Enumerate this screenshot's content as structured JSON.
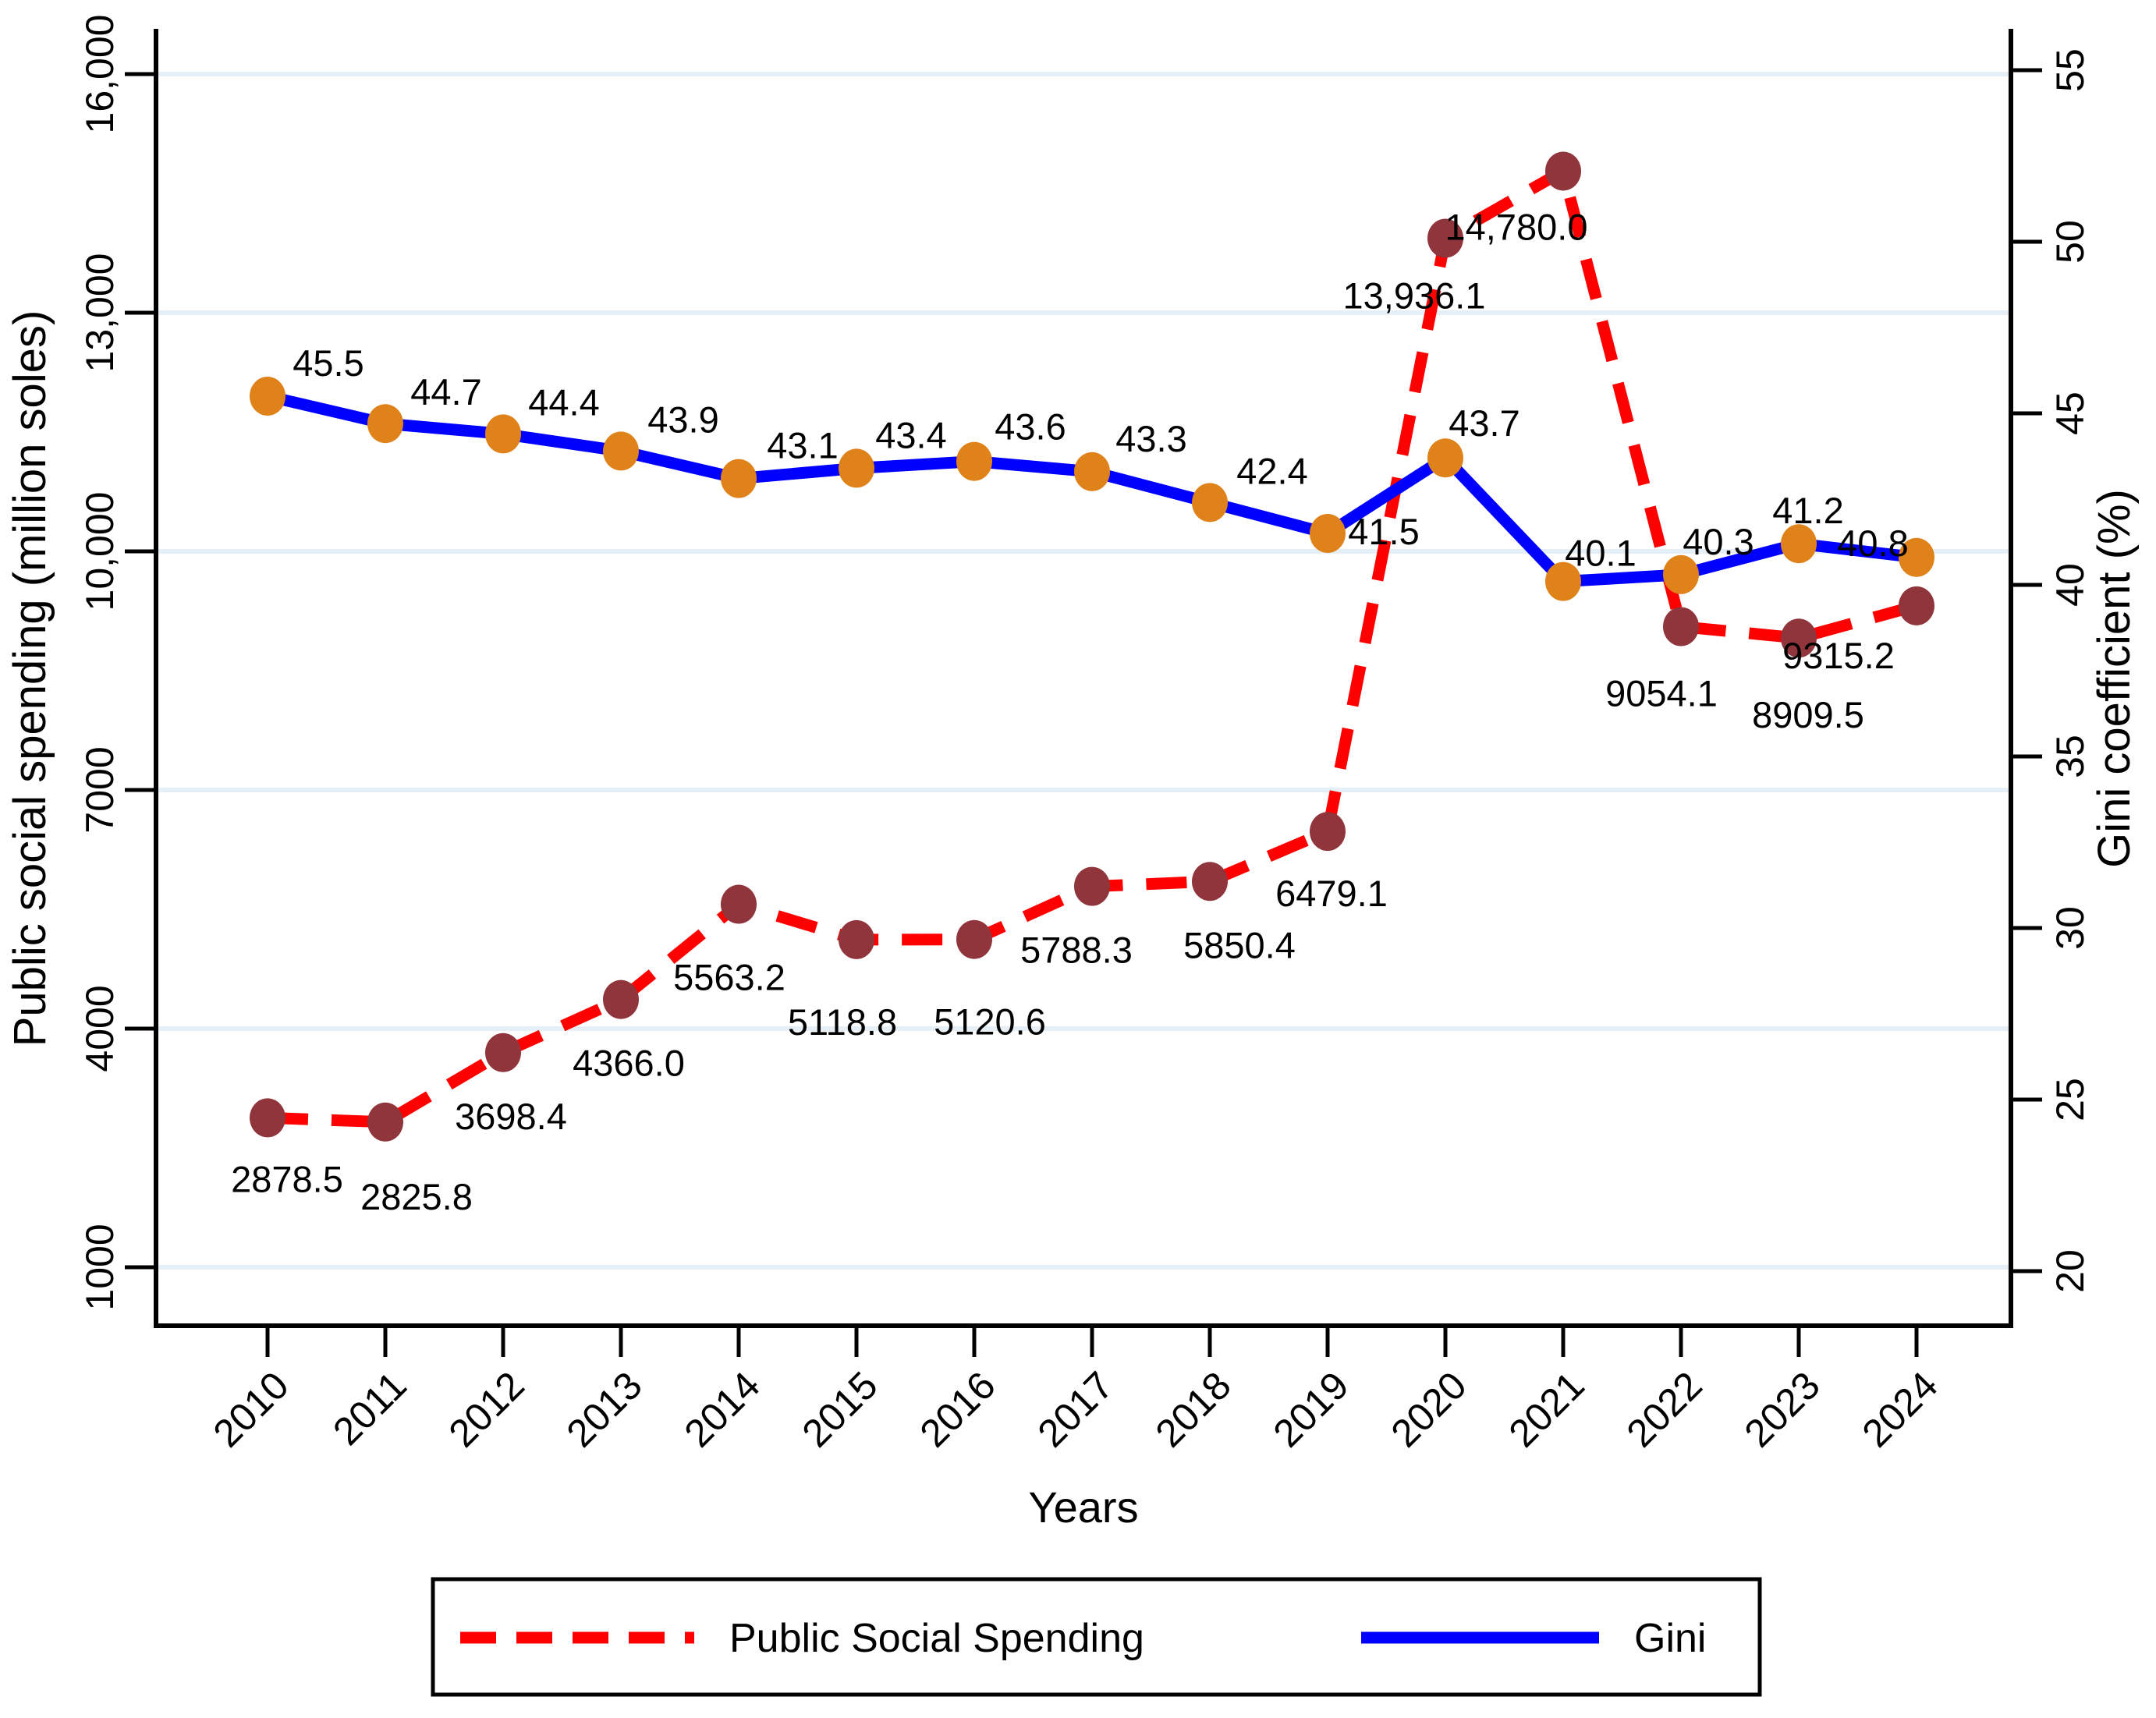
{
  "chart_data": {
    "type": "line",
    "title": "",
    "xlabel": "Years",
    "ylabel_left": "Public social spending (million soles)",
    "ylabel_right": "Gini coefficient (%)",
    "x": [
      "2010",
      "2011",
      "2012",
      "2013",
      "2014",
      "2015",
      "2016",
      "2017",
      "2018",
      "2019",
      "2020",
      "2021",
      "2022",
      "2023",
      "2024"
    ],
    "left_axis": {
      "range": [
        1000,
        16000
      ],
      "ticks": [
        1000,
        4000,
        7000,
        10000,
        13000,
        16000
      ],
      "tick_labels": [
        "1000",
        "4000",
        "7000",
        "10,000",
        "13,000",
        "16,000"
      ],
      "grid": true
    },
    "right_axis": {
      "range": [
        20,
        55
      ],
      "ticks": [
        20,
        25,
        30,
        35,
        40,
        45,
        50,
        55
      ],
      "tick_labels": [
        "20",
        "25",
        "30",
        "35",
        "40",
        "45",
        "50",
        "55"
      ],
      "grid": false
    },
    "series": [
      {
        "name": "Public Social Spending",
        "axis": "left",
        "line_style": "dashed",
        "line_color": "#ff0000",
        "marker_color": "#90353b",
        "label_color": "#ff0000",
        "values": [
          2878.5,
          2825.8,
          3698.4,
          4366.0,
          5563.2,
          5118.8,
          5120.6,
          5788.3,
          5850.4,
          6479.1,
          13936.1,
          14780.0,
          9054.1,
          8909.5,
          9315.2
        ],
        "labels": [
          "2878.5",
          "2825.8",
          "3698.4",
          "4366.0",
          "5563.2",
          "5118.8",
          "5120.6",
          "5788.3",
          "5850.4",
          "6479.1",
          "13,936.1",
          "14,780.0",
          "9054.1",
          "8909.5",
          "9315.2"
        ],
        "label_offsets": [
          [
            25,
            95
          ],
          [
            40,
            112
          ],
          [
            10,
            98
          ],
          [
            10,
            98
          ],
          [
            -12,
            110
          ],
          [
            -18,
            122
          ],
          [
            20,
            122
          ],
          [
            -20,
            98
          ],
          [
            38,
            98
          ],
          [
            5,
            96
          ],
          [
            -40,
            90
          ],
          [
            -60,
            88
          ],
          [
            -25,
            102
          ],
          [
            12,
            115
          ],
          [
            -100,
            80
          ]
        ]
      },
      {
        "name": "Gini",
        "axis": "right",
        "line_style": "solid",
        "line_color": "#0000ff",
        "marker_color": "#e0821a",
        "label_color": "#0000ff",
        "values": [
          45.5,
          44.7,
          44.4,
          43.9,
          43.1,
          43.4,
          43.6,
          43.3,
          42.4,
          41.5,
          43.7,
          40.1,
          40.3,
          41.2,
          40.8
        ],
        "labels": [
          "45.5",
          "44.7",
          "44.4",
          "43.9",
          "43.1",
          "43.4",
          "43.6",
          "43.3",
          "42.4",
          "41.5",
          "43.7",
          "40.1",
          "40.3",
          "41.2",
          "40.8"
        ],
        "label_offsets": [
          [
            78,
            -26
          ],
          [
            78,
            -24
          ],
          [
            78,
            -24
          ],
          [
            80,
            -24
          ],
          [
            82,
            -26
          ],
          [
            70,
            -26
          ],
          [
            72,
            -28
          ],
          [
            76,
            -26
          ],
          [
            80,
            -24
          ],
          [
            72,
            14
          ],
          [
            50,
            -28
          ],
          [
            48,
            -20
          ],
          [
            48,
            -26
          ],
          [
            12,
            -26
          ],
          [
            -56,
            -2
          ]
        ]
      }
    ],
    "legend": {
      "position": "bottom",
      "entries": [
        "Public Social Spending",
        "Gini"
      ]
    },
    "colors": {
      "grid": "#e6eff5",
      "axis": "#000000",
      "background": "#ffffff",
      "spending_line": "#ff0000",
      "gini_line": "#0000ff",
      "spending_marker": "#90353b",
      "gini_marker": "#e0821a"
    }
  }
}
